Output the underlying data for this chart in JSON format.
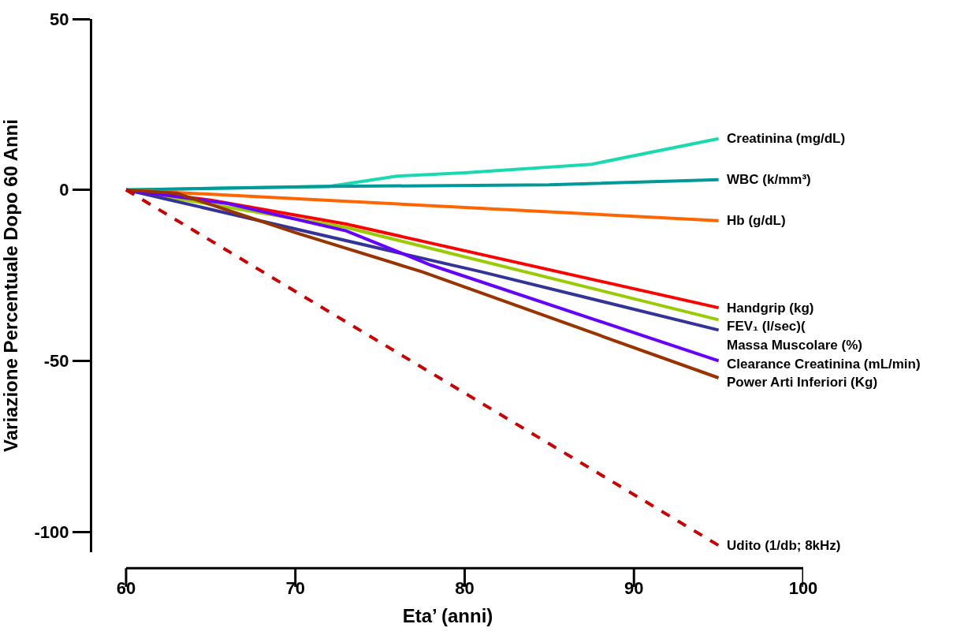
{
  "chart_data": {
    "type": "line",
    "xlabel": "Eta’ (anni)",
    "ylabel": "Variazione Percentuale Dopo 60 Anni",
    "xlim": [
      58,
      100
    ],
    "xticks": [
      60,
      70,
      80,
      90,
      100
    ],
    "ylim": [
      -106,
      50
    ],
    "yticks": [
      -100,
      -50,
      0,
      50
    ],
    "legend": false,
    "marker": "none",
    "line_style": "solid",
    "series": [
      {
        "name": "Creatinina (mg/dL)",
        "color": "#19d9b0",
        "x": [
          60,
          72,
          76,
          80,
          87.5,
          95
        ],
        "values": [
          0,
          1,
          4,
          5,
          7.5,
          15
        ]
      },
      {
        "name": "WBC (k/mm³)",
        "color": "#009999",
        "x": [
          60,
          72,
          85,
          95
        ],
        "values": [
          0,
          1,
          1.5,
          3
        ]
      },
      {
        "name": "Hb (g/dL)",
        "color": "#ff6600",
        "x": [
          60,
          95
        ],
        "values": [
          0,
          -9
        ]
      },
      {
        "name": "Handgrip (kg)",
        "color": "#ff0000",
        "x": [
          60,
          65,
          73,
          95
        ],
        "values": [
          0,
          -3,
          -10,
          -34.5
        ]
      },
      {
        "name": "FEV₁ (l/sec)(",
        "color": "#99cc00",
        "x": [
          60,
          73,
          95
        ],
        "values": [
          0,
          -11,
          -38
        ]
      },
      {
        "name": "Massa Muscolare (%)",
        "color": "#333399",
        "x": [
          60,
          81,
          95
        ],
        "values": [
          0,
          -24,
          -41
        ]
      },
      {
        "name": "Clearance Creatinina (mL/min)",
        "color": "#6600ff",
        "x": [
          60,
          66,
          73,
          78,
          95
        ],
        "values": [
          0,
          -4,
          -12,
          -22,
          -50
        ]
      },
      {
        "name": "Power Arti Inferiori (Kg)",
        "color": "#993300",
        "x": [
          60,
          63,
          70,
          77.5,
          95
        ],
        "values": [
          0,
          -1,
          -12.5,
          -24,
          -55
        ]
      },
      {
        "name": "Udito (1/db; 8kHz)",
        "color": "#cc0000",
        "line_style": "dashed",
        "x": [
          60,
          95
        ],
        "values": [
          0,
          -104
        ]
      }
    ]
  }
}
